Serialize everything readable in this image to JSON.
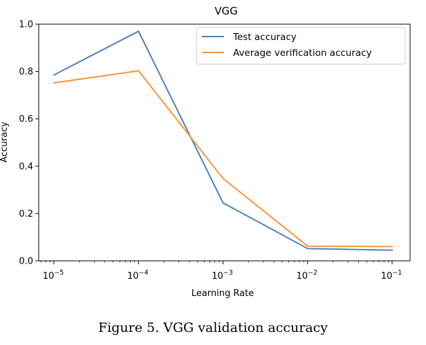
{
  "chart_data": {
    "type": "line",
    "title": "VGG",
    "xlabel": "Learning Rate",
    "ylabel": "Accuracy",
    "x_scale": "log",
    "x": [
      1e-05,
      0.0001,
      0.001,
      0.01,
      0.1
    ],
    "x_tick_labels": [
      {
        "base": "10",
        "exp": "−5"
      },
      {
        "base": "10",
        "exp": "−4"
      },
      {
        "base": "10",
        "exp": "−3"
      },
      {
        "base": "10",
        "exp": "−2"
      },
      {
        "base": "10",
        "exp": "−1"
      }
    ],
    "y_ticks": [
      "0.0",
      "0.2",
      "0.4",
      "0.6",
      "0.8",
      "1.0"
    ],
    "ylim": [
      0.0,
      1.0
    ],
    "grid": false,
    "legend_position": "top-right",
    "series": [
      {
        "name": "Test accuracy",
        "color": "#4f81bd",
        "values": [
          0.785,
          0.97,
          0.245,
          0.052,
          0.045
        ]
      },
      {
        "name": "Average verification accuracy",
        "color": "#f7953b",
        "values": [
          0.752,
          0.803,
          0.348,
          0.062,
          0.06
        ]
      }
    ]
  },
  "caption": "Figure 5.  VGG validation accuracy"
}
